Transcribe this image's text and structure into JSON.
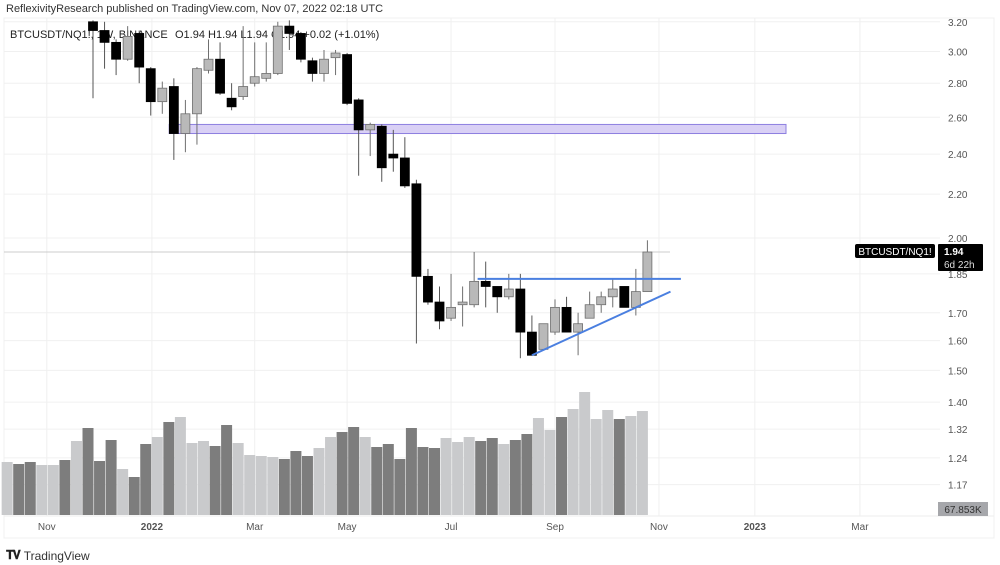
{
  "header": {
    "published": "ReflexivityResearch published on TradingView.com, Nov 07, 2022 02:18 UTC"
  },
  "legend": {
    "symbol": "BTCUSDT/NQ1!, 1W, BINANCE",
    "ohlc": "O1.94  H1.94  L1.94  C1.94  +0.02 (+1.01%)"
  },
  "price_label": {
    "symbol": "BTCUSDT/NQ1!",
    "price": "1.94",
    "countdown": "6d 22h"
  },
  "volume_label": "67.853K",
  "brand": {
    "name": "TradingView",
    "logo": "TV"
  },
  "colors": {
    "down": "#000000",
    "up": "#b9b9b9",
    "up_border": "#6f6f6f",
    "vol_down": "#7d7d7d",
    "vol_up": "#c9cacc",
    "zone": "#d9d0f5",
    "zone_border": "#8d7fe0",
    "trendline": "#4a7fe0",
    "grid": "#f0f0f0"
  },
  "chart_data": {
    "type": "candlestick",
    "title": "BTCUSDT/NQ1!, 1W, BINANCE",
    "yscale": "log",
    "ylim": [
      1.13,
      3.25
    ],
    "y_ticks": [
      "3.20",
      "3.00",
      "2.80",
      "2.60",
      "2.40",
      "2.20",
      "2.00",
      "1.85",
      "1.70",
      "1.60",
      "1.50",
      "1.40",
      "1.32",
      "1.24",
      "1.17"
    ],
    "x_ticks": [
      {
        "label": "Nov",
        "bar": -4
      },
      {
        "label": "2022",
        "bar": 5.1
      },
      {
        "label": "Mar",
        "bar": 14
      },
      {
        "label": "May",
        "bar": 22
      },
      {
        "label": "Jul",
        "bar": 31
      },
      {
        "label": "Sep",
        "bar": 40
      },
      {
        "label": "Nov",
        "bar": 49
      },
      {
        "label": "2023",
        "bar": 57.3
      },
      {
        "label": "Mar",
        "bar": 66.4
      }
    ],
    "candles_ohlc": [
      [
        3.2,
        3.21,
        2.71,
        3.14
      ],
      [
        3.14,
        3.2,
        2.89,
        3.06
      ],
      [
        3.06,
        3.08,
        2.85,
        2.95
      ],
      [
        2.95,
        3.17,
        2.94,
        3.1
      ],
      [
        3.12,
        3.14,
        2.8,
        2.9
      ],
      [
        2.89,
        2.9,
        2.61,
        2.69
      ],
      [
        2.69,
        2.81,
        2.62,
        2.77
      ],
      [
        2.78,
        2.83,
        2.37,
        2.51
      ],
      [
        2.51,
        2.7,
        2.41,
        2.62
      ],
      [
        2.62,
        2.9,
        2.45,
        2.89
      ],
      [
        2.88,
        3.08,
        2.86,
        2.95
      ],
      [
        2.95,
        3.06,
        2.73,
        2.74
      ],
      [
        2.71,
        2.8,
        2.64,
        2.66
      ],
      [
        2.72,
        3.17,
        2.7,
        2.78
      ],
      [
        2.8,
        3.06,
        2.78,
        2.84
      ],
      [
        2.83,
        3.06,
        2.81,
        2.86
      ],
      [
        2.86,
        3.2,
        2.85,
        3.17
      ],
      [
        3.17,
        3.21,
        3.01,
        3.12
      ],
      [
        3.12,
        3.13,
        2.93,
        2.95
      ],
      [
        2.94,
        2.96,
        2.81,
        2.86
      ],
      [
        2.86,
        3.01,
        2.81,
        2.95
      ],
      [
        2.96,
        3.01,
        2.85,
        2.99
      ],
      [
        2.98,
        2.99,
        2.67,
        2.68
      ],
      [
        2.7,
        2.71,
        2.29,
        2.53
      ],
      [
        2.53,
        2.57,
        2.39,
        2.56
      ],
      [
        2.55,
        2.56,
        2.26,
        2.33
      ],
      [
        2.4,
        2.53,
        2.31,
        2.38
      ],
      [
        2.38,
        2.49,
        2.23,
        2.24
      ],
      [
        2.25,
        2.27,
        1.59,
        1.84
      ],
      [
        1.84,
        1.87,
        1.73,
        1.74
      ],
      [
        1.74,
        1.8,
        1.64,
        1.67
      ],
      [
        1.68,
        1.85,
        1.67,
        1.72
      ],
      [
        1.73,
        1.8,
        1.65,
        1.74
      ],
      [
        1.73,
        1.94,
        1.72,
        1.82
      ],
      [
        1.82,
        1.9,
        1.72,
        1.8
      ],
      [
        1.8,
        1.8,
        1.7,
        1.76
      ],
      [
        1.76,
        1.85,
        1.75,
        1.79
      ],
      [
        1.79,
        1.85,
        1.54,
        1.63
      ],
      [
        1.63,
        1.69,
        1.55,
        1.55
      ],
      [
        1.57,
        1.66,
        1.57,
        1.66
      ],
      [
        1.63,
        1.75,
        1.62,
        1.72
      ],
      [
        1.72,
        1.76,
        1.63,
        1.63
      ],
      [
        1.63,
        1.7,
        1.55,
        1.66
      ],
      [
        1.68,
        1.78,
        1.68,
        1.73
      ],
      [
        1.73,
        1.78,
        1.7,
        1.76
      ],
      [
        1.76,
        1.83,
        1.72,
        1.79
      ],
      [
        1.8,
        1.8,
        1.72,
        1.72
      ],
      [
        1.72,
        1.87,
        1.69,
        1.78
      ],
      [
        1.78,
        1.99,
        1.78,
        1.94
      ]
    ],
    "volume_relative": [
      [
        53,
        "up"
      ],
      [
        51,
        "down"
      ],
      [
        53,
        "down"
      ],
      [
        50,
        "up"
      ],
      [
        50,
        "up"
      ],
      [
        55,
        "down"
      ],
      [
        74,
        "up"
      ],
      [
        87,
        "down"
      ],
      [
        54,
        "down"
      ],
      [
        75,
        "down"
      ],
      [
        46,
        "up"
      ],
      [
        38,
        "down"
      ],
      [
        71,
        "down"
      ],
      [
        78,
        "up"
      ],
      [
        93,
        "down"
      ],
      [
        98,
        "up"
      ],
      [
        72,
        "up"
      ],
      [
        74,
        "up"
      ],
      [
        69,
        "down"
      ],
      [
        90,
        "down"
      ],
      [
        72,
        "up"
      ],
      [
        60,
        "up"
      ],
      [
        59,
        "up"
      ],
      [
        58,
        "up"
      ],
      [
        56,
        "down"
      ],
      [
        64,
        "down"
      ],
      [
        59,
        "down"
      ],
      [
        67,
        "up"
      ],
      [
        78,
        "up"
      ],
      [
        83,
        "down"
      ],
      [
        88,
        "down"
      ],
      [
        78,
        "up"
      ],
      [
        68,
        "down"
      ],
      [
        71,
        "down"
      ],
      [
        56,
        "down"
      ],
      [
        87,
        "down"
      ],
      [
        68,
        "down"
      ],
      [
        67,
        "down"
      ],
      [
        77,
        "up"
      ],
      [
        73,
        "up"
      ],
      [
        78,
        "up"
      ],
      [
        74,
        "down"
      ],
      [
        77,
        "down"
      ],
      [
        71,
        "up"
      ],
      [
        75,
        "down"
      ],
      [
        81,
        "down"
      ],
      [
        97,
        "up"
      ],
      [
        85,
        "up"
      ],
      [
        98,
        "down"
      ],
      [
        106,
        "up"
      ],
      [
        123,
        "up"
      ],
      [
        96,
        "up"
      ],
      [
        105,
        "up"
      ],
      [
        96,
        "down"
      ],
      [
        99,
        "up"
      ],
      [
        104,
        "up"
      ]
    ],
    "volume_offset_bars": 7,
    "drawings": {
      "resistance_zone": {
        "from_bar": 6.6,
        "to_bar": 60,
        "top": 2.56,
        "bottom": 2.51
      },
      "horizontal_line": {
        "from_bar": 33.3,
        "to_bar": 50.9,
        "price": 1.83
      },
      "trend_line": {
        "from_bar": 38,
        "from_price": 1.55,
        "to_bar": 50,
        "to_price": 1.78
      },
      "last_price_line": 1.94
    }
  }
}
